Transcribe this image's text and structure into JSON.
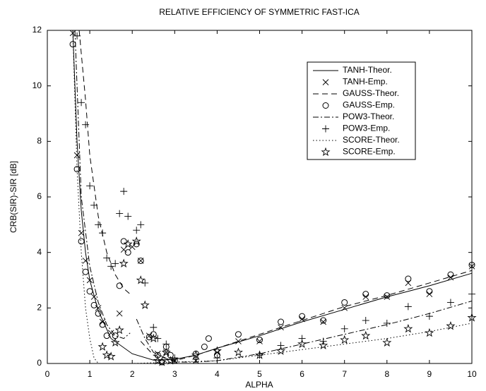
{
  "chart_data": {
    "type": "line",
    "title": "RELATIVE EFFICIENCY OF SYMMETRIC FAST-ICA",
    "xlabel": "ALPHA",
    "ylabel": "CRB(SIR)-SIR [dB]",
    "xlim": [
      0,
      10
    ],
    "ylim": [
      0,
      12
    ],
    "xticks": [
      0,
      1,
      2,
      3,
      4,
      5,
      6,
      7,
      8,
      9,
      10
    ],
    "yticks": [
      0,
      2,
      4,
      6,
      8,
      10,
      12
    ],
    "legend": "upper right",
    "series": [
      {
        "name": "TANH-Theor.",
        "color": "#000000",
        "style": "solid",
        "x": [
          0.6,
          0.7,
          0.8,
          0.9,
          1.0,
          1.2,
          1.5,
          2.0,
          2.5,
          3.0,
          3.5,
          4,
          5,
          6,
          7,
          8,
          9,
          10
        ],
        "values": [
          12,
          8,
          5.5,
          4,
          3,
          1.9,
          0.9,
          0.35,
          0.12,
          0.15,
          0.3,
          0.55,
          1.0,
          1.5,
          1.95,
          2.4,
          2.8,
          3.25
        ]
      },
      {
        "name": "TANH-Emp.",
        "color": "#000000",
        "marker": "x",
        "x": [
          0.6,
          0.7,
          0.8,
          0.9,
          1.0,
          1.1,
          1.2,
          1.3,
          1.5,
          1.7,
          1.8,
          2.0,
          2.2,
          2.4,
          2.6,
          2.8,
          3.0,
          3.5,
          4,
          4.5,
          5,
          5.5,
          6,
          6.5,
          7,
          7.5,
          8,
          8.5,
          9,
          9.5,
          10
        ],
        "values": [
          11.9,
          7.5,
          4.7,
          3.7,
          3.0,
          2.4,
          2.0,
          1.5,
          1.1,
          1.8,
          4.1,
          4.2,
          3.7,
          1.0,
          0.35,
          0.4,
          0.1,
          0.1,
          0.4,
          0.8,
          0.8,
          1.3,
          1.6,
          1.5,
          2.0,
          2.4,
          2.4,
          2.9,
          2.5,
          3.1,
          3.5
        ]
      },
      {
        "name": "GAUSS-Theor.",
        "color": "#000000",
        "style": "dashed",
        "x": [
          0.75,
          0.9,
          1.0,
          1.2,
          1.4,
          1.6,
          1.8,
          1.95,
          2.0,
          2.2,
          2.5,
          3.0,
          3.5,
          4,
          5,
          6,
          7,
          8,
          9,
          10
        ],
        "values": [
          12,
          9.5,
          7.5,
          5.3,
          4,
          3.2,
          2.7,
          2.5,
          null,
          0.8,
          0.3,
          0.1,
          0.3,
          0.55,
          1.05,
          1.55,
          2.05,
          2.45,
          2.9,
          3.35
        ]
      },
      {
        "name": "GAUSS-Emp.",
        "color": "#000000",
        "marker": "o",
        "x": [
          0.6,
          0.7,
          0.8,
          0.9,
          1.0,
          1.1,
          1.2,
          1.3,
          1.4,
          1.6,
          1.7,
          1.8,
          1.9,
          2.1,
          2.2,
          2.4,
          2.5,
          2.6,
          2.7,
          2.8,
          2.9,
          3.0,
          3.5,
          3.7,
          3.8,
          4,
          4.5,
          5,
          5.5,
          6,
          6.5,
          7,
          7.5,
          8,
          8.5,
          9,
          9.5,
          10
        ],
        "values": [
          11.5,
          7.0,
          4.4,
          3.3,
          2.6,
          2.1,
          1.8,
          1.4,
          1.0,
          1.0,
          2.8,
          4.4,
          4.0,
          4.3,
          3.7,
          0.95,
          1.05,
          0.3,
          0.05,
          0.6,
          0.3,
          0.1,
          0.35,
          0.6,
          0.9,
          0.3,
          1.05,
          0.85,
          1.5,
          1.7,
          1.55,
          2.2,
          2.5,
          2.45,
          3.05,
          2.6,
          3.2,
          3.55
        ]
      },
      {
        "name": "POW3-Theor.",
        "color": "#000000",
        "style": "dashdot",
        "x": [
          0.65,
          0.8,
          1.0,
          1.2,
          1.4,
          1.6,
          1.8,
          1.95,
          2.0,
          2.1,
          2.3,
          2.5,
          3.0,
          3.5,
          4,
          5,
          6,
          7,
          8,
          9,
          10
        ],
        "values": [
          12,
          6,
          3.5,
          2.2,
          1.4,
          1.0,
          0.9,
          1.1,
          null,
          1.6,
          0.9,
          0.4,
          0.05,
          0.05,
          0.1,
          0.35,
          0.7,
          1.05,
          1.4,
          1.8,
          2.25
        ]
      },
      {
        "name": "POW3-Emp.",
        "color": "#000000",
        "marker": "+",
        "x": [
          0.7,
          0.8,
          0.9,
          1.0,
          1.1,
          1.2,
          1.3,
          1.4,
          1.5,
          1.6,
          1.7,
          1.8,
          1.9,
          2.1,
          2.2,
          2.3,
          2.5,
          2.6,
          2.8,
          3.0,
          3.5,
          4,
          5,
          5.5,
          6,
          6.5,
          7,
          7.5,
          8,
          8.5,
          9,
          9.5,
          10
        ],
        "values": [
          11.8,
          9.4,
          8.6,
          6.4,
          5.7,
          5.0,
          4.7,
          3.8,
          3.5,
          3.6,
          5.4,
          6.2,
          5.3,
          4.8,
          5.0,
          2.9,
          1.3,
          0.9,
          0.7,
          0.2,
          0.15,
          0.2,
          0.3,
          0.65,
          0.9,
          0.8,
          1.25,
          1.55,
          1.45,
          2.05,
          1.7,
          2.2,
          2.5
        ]
      },
      {
        "name": "SCORE-Theor.",
        "color": "#000000",
        "style": "dotted",
        "x": [
          0.6,
          0.7,
          0.8,
          0.9,
          1.0,
          1.1,
          1.2,
          2,
          3,
          4,
          5,
          6,
          7,
          8,
          9,
          10
        ],
        "values": [
          12,
          7,
          4,
          2,
          0.9,
          0.2,
          0.0,
          0,
          0.05,
          0.1,
          0.3,
          0.5,
          0.7,
          0.9,
          1.15,
          1.45
        ]
      },
      {
        "name": "SCORE-Emp.",
        "color": "#000000",
        "marker": "star",
        "x": [
          1.3,
          1.4,
          1.5,
          1.6,
          1.7,
          1.8,
          1.9,
          2.1,
          2.2,
          2.3,
          2.5,
          2.6,
          2.7,
          2.8,
          2.9,
          3.5,
          4,
          4.5,
          5,
          5.5,
          6,
          6.5,
          7,
          7.5,
          8,
          8.5,
          9,
          9.5,
          10
        ],
        "values": [
          0.6,
          0.3,
          0.25,
          0.75,
          1.2,
          3.6,
          4.3,
          4.4,
          3.0,
          2.1,
          0.9,
          0.1,
          0.05,
          0.4,
          0.1,
          0.3,
          0.45,
          0.4,
          0.3,
          0.45,
          0.7,
          0.65,
          0.85,
          1.0,
          0.75,
          1.25,
          1.1,
          1.35,
          1.65
        ]
      }
    ]
  }
}
